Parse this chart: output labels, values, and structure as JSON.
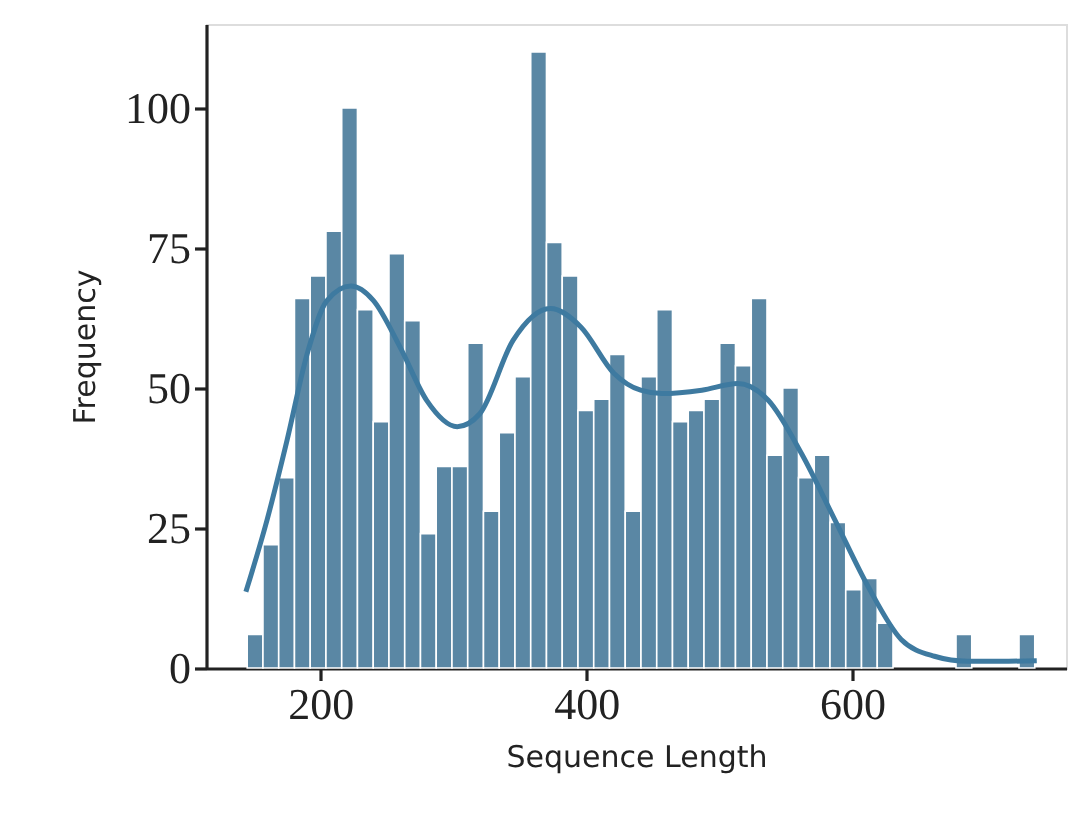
{
  "chart_data": {
    "type": "histogram",
    "xlabel": "Sequence Length",
    "ylabel": "Frequency",
    "bins": [
      145.0,
      156.85,
      168.7,
      180.55,
      192.4,
      204.25,
      216.1,
      227.95,
      239.8,
      251.65,
      263.5,
      275.35,
      287.2,
      299.05,
      310.9,
      322.75,
      334.6,
      346.45,
      358.3,
      370.15,
      382.0,
      393.85,
      405.7,
      417.55,
      429.4,
      441.25,
      453.1,
      464.95,
      476.8,
      488.65,
      500.5,
      512.35,
      524.2,
      536.05,
      547.9,
      559.75,
      571.6,
      583.45,
      595.3,
      607.15,
      619.0,
      630.85,
      642.7,
      654.55,
      666.4,
      678.25,
      690.1,
      701.95,
      713.8,
      725.65,
      737.5
    ],
    "values": [
      6,
      22,
      34,
      66,
      70,
      78,
      100,
      64,
      44,
      74,
      62,
      24,
      36,
      36,
      58,
      28,
      42,
      52,
      110,
      76,
      70,
      46,
      48,
      56,
      28,
      52,
      64,
      44,
      46,
      48,
      58,
      54,
      66,
      38,
      50,
      34,
      38,
      26,
      14,
      16,
      8,
      0,
      0,
      0,
      0,
      6,
      0,
      0,
      0,
      6
    ],
    "color": "#5a87a4",
    "series": [
      {
        "type": "line",
        "color": "#3e7aa0",
        "x": [
          144,
          160,
          175,
          190,
          205,
          223,
          240,
          260,
          280,
          303,
          320,
          345,
          373,
          396,
          421,
          441,
          457,
          487,
          514,
          537,
          562,
          587,
          612,
          637,
          662,
          687,
          712,
          739
        ],
        "values": [
          13.6,
          26.5,
          40.7,
          56,
          65.6,
          68.2,
          65.6,
          57.3,
          47.8,
          43.1,
          45.4,
          58.5,
          64.2,
          60.9,
          52.6,
          49.6,
          49,
          49.6,
          50.8,
          47.8,
          38.3,
          26.5,
          14.6,
          5.1,
          2.1,
          1.2,
          1.2,
          1.3
        ]
      }
    ],
    "xlim": [
      114,
      761
    ],
    "ylim": [
      0,
      115
    ],
    "xticks": [
      200,
      400,
      600
    ],
    "yticks": [
      0,
      25,
      50,
      75,
      100
    ],
    "grid": false
  }
}
